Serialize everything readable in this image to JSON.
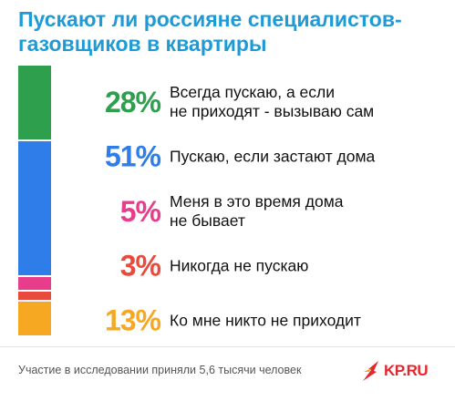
{
  "title": "Пускают ли россияне специалистов-\nгазовщиков в квартиры",
  "chart_data": {
    "type": "bar",
    "stacked": true,
    "orientation": "vertical",
    "title": "Пускают ли россияне специалистов-\nгазовщиков в квартиры",
    "categories": [
      "Всегда пускаю, а если\nне приходят - вызываю сам",
      "Пускаю, если застают дома",
      "Меня в это время дома\nне бывает",
      "Никогда не пускаю",
      "Ко мне никто не приходит"
    ],
    "values": [
      28,
      51,
      5,
      3,
      13
    ],
    "value_labels": [
      "28%",
      "51%",
      "5%",
      "3%",
      "13%"
    ],
    "colors": [
      "#2e9f4d",
      "#2e7de8",
      "#e83d8a",
      "#e84b3c",
      "#f7a823"
    ],
    "ylim": [
      0,
      100
    ],
    "grid": false,
    "legend": "right"
  },
  "footer": {
    "note": "Участие в исследовании приняли 5,6 тысячи человек",
    "logo_text": "KP.RU",
    "logo_icon": "kp-bird-logo-icon"
  }
}
